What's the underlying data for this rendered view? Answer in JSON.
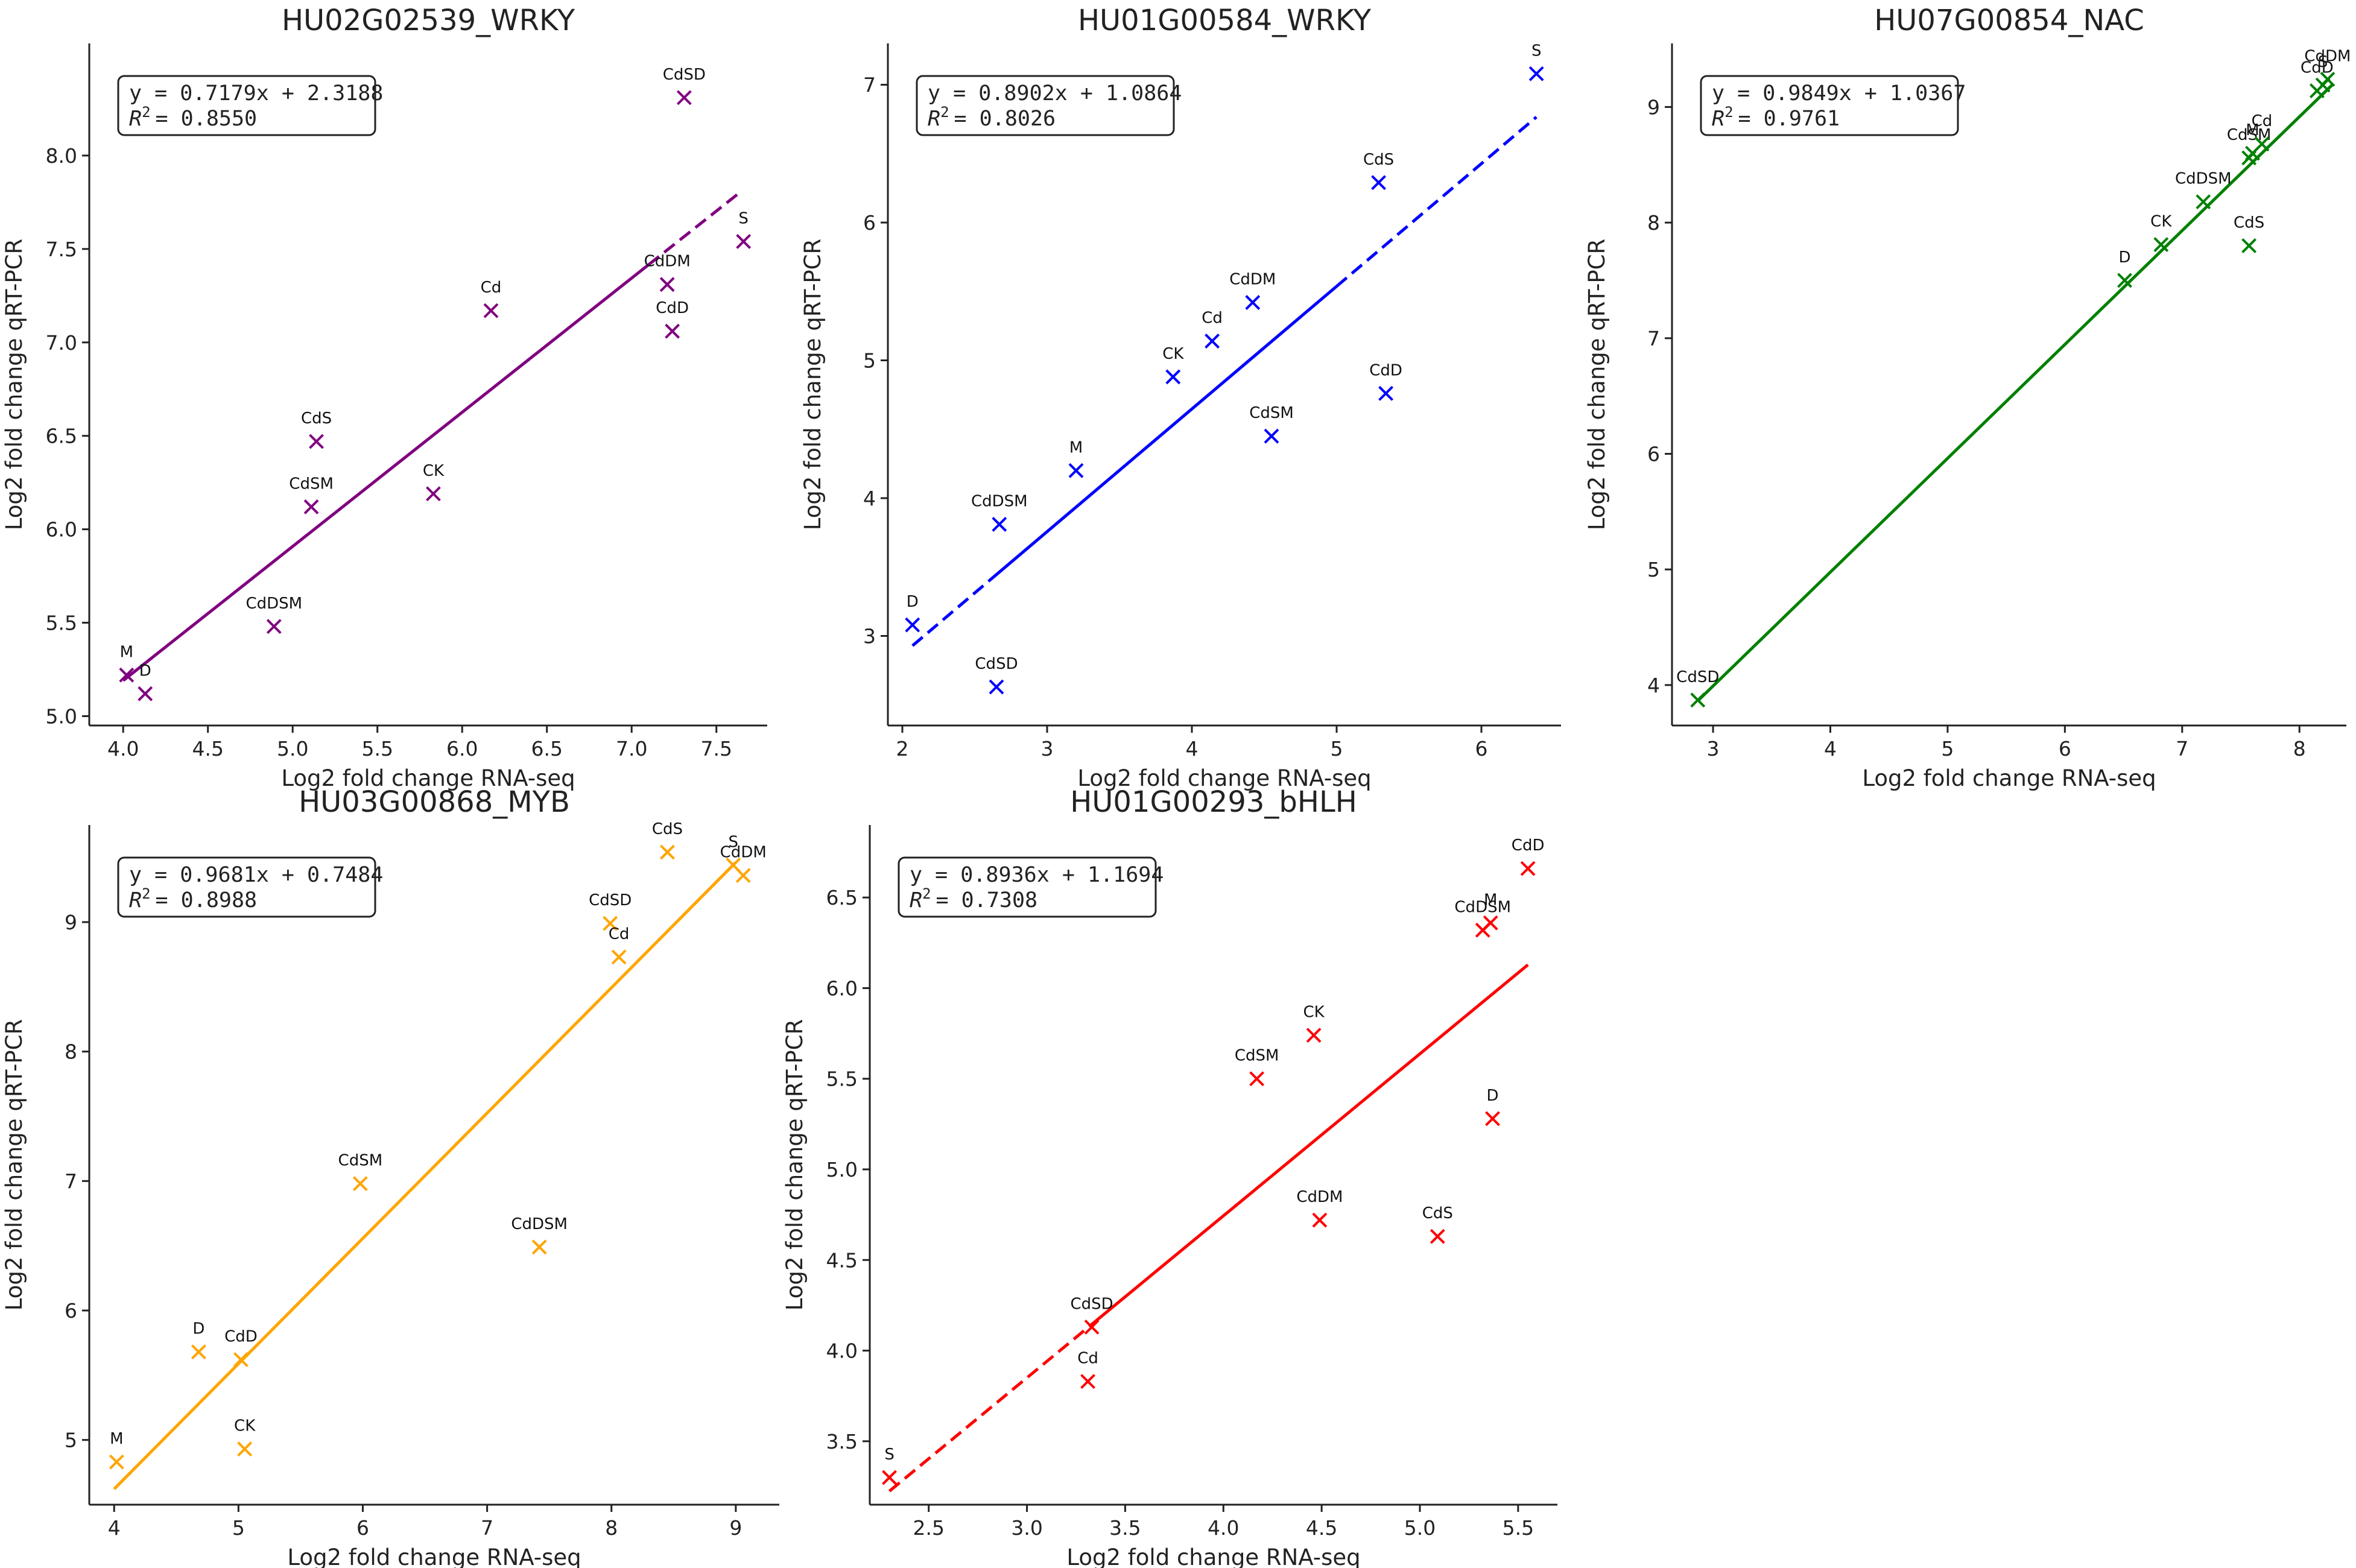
{
  "chart_data": [
    {
      "type": "scatter",
      "title": "HU02G02539_WRKY",
      "xlabel": "Log2 fold change RNA-seq",
      "ylabel": "Log2 fold change qRT-PCR",
      "color": "#800080",
      "xlim": [
        3.8,
        7.8
      ],
      "ylim": [
        4.95,
        8.6
      ],
      "xticks": [
        "4.0",
        "4.5",
        "5.0",
        "5.5",
        "6.0",
        "6.5",
        "7.0",
        "7.5"
      ],
      "yticks": [
        "5.0",
        "5.5",
        "6.0",
        "6.5",
        "7.0",
        "7.5",
        "8.0"
      ],
      "equation": "y = 0.7179x + 2.3188",
      "r2_label": "R",
      "r2_value": "= 0.8550",
      "fit": {
        "slope": 0.7179,
        "intercept": 2.3188,
        "x_solid": [
          4.0,
          7.1
        ],
        "x_dashed": [
          7.1,
          7.65
        ]
      },
      "points": [
        {
          "label": "M",
          "x": 4.02,
          "y": 5.22
        },
        {
          "label": "D",
          "x": 4.13,
          "y": 5.12
        },
        {
          "label": "CdDSM",
          "x": 4.89,
          "y": 5.48
        },
        {
          "label": "CdSM",
          "x": 5.11,
          "y": 6.12
        },
        {
          "label": "CdS",
          "x": 5.14,
          "y": 6.47
        },
        {
          "label": "CK",
          "x": 5.83,
          "y": 6.19
        },
        {
          "label": "Cd",
          "x": 6.17,
          "y": 7.17
        },
        {
          "label": "CdDM",
          "x": 7.21,
          "y": 7.31
        },
        {
          "label": "CdD",
          "x": 7.24,
          "y": 7.06
        },
        {
          "label": "CdSD",
          "x": 7.31,
          "y": 8.31
        },
        {
          "label": "S",
          "x": 7.66,
          "y": 7.54
        }
      ]
    },
    {
      "type": "scatter",
      "title": "HU01G00584_WRKY",
      "xlabel": "Log2 fold change RNA-seq",
      "ylabel": "Log2 fold change qRT-PCR",
      "color": "#0000FF",
      "xlim": [
        1.9,
        6.55
      ],
      "ylim": [
        2.35,
        7.3
      ],
      "xticks": [
        "2",
        "3",
        "4",
        "5",
        "6"
      ],
      "yticks": [
        "3",
        "4",
        "5",
        "6",
        "7"
      ],
      "equation": "y = 0.8902x + 1.0864",
      "r2_label": "R",
      "r2_value": "= 0.8026",
      "fit": {
        "slope": 0.8902,
        "intercept": 1.0864,
        "x_solid": [
          2.6,
          5.0
        ],
        "x_dashed_low": [
          2.07,
          2.6
        ],
        "x_dashed_high": [
          5.0,
          6.38
        ]
      },
      "points": [
        {
          "label": "D",
          "x": 2.07,
          "y": 3.08
        },
        {
          "label": "CdSD",
          "x": 2.65,
          "y": 2.63
        },
        {
          "label": "CdDSM",
          "x": 2.67,
          "y": 3.81
        },
        {
          "label": "M",
          "x": 3.2,
          "y": 4.2
        },
        {
          "label": "CK",
          "x": 3.87,
          "y": 4.88
        },
        {
          "label": "Cd",
          "x": 4.14,
          "y": 5.14
        },
        {
          "label": "CdDM",
          "x": 4.42,
          "y": 5.42
        },
        {
          "label": "CdSM",
          "x": 4.55,
          "y": 4.45
        },
        {
          "label": "CdS",
          "x": 5.29,
          "y": 6.29
        },
        {
          "label": "CdD",
          "x": 5.34,
          "y": 4.76
        },
        {
          "label": "S",
          "x": 6.38,
          "y": 7.08
        }
      ]
    },
    {
      "type": "scatter",
      "title": "HU07G00854_NAC",
      "xlabel": "Log2 fold change RNA-seq",
      "ylabel": "Log2 fold change qRT-PCR",
      "color": "#008000",
      "xlim": [
        2.65,
        8.4
      ],
      "ylim": [
        3.65,
        9.55
      ],
      "xticks": [
        "3",
        "4",
        "5",
        "6",
        "7",
        "8"
      ],
      "yticks": [
        "4",
        "5",
        "6",
        "7",
        "8",
        "9"
      ],
      "equation": "y = 0.9849x + 1.0367",
      "r2_label": "R",
      "r2_value": "= 0.9761",
      "fit": {
        "slope": 0.9849,
        "intercept": 1.0367,
        "x_solid": [
          2.87,
          8.28
        ]
      },
      "points": [
        {
          "label": "CdSD",
          "x": 2.87,
          "y": 3.87
        },
        {
          "label": "D",
          "x": 6.51,
          "y": 7.5
        },
        {
          "label": "CK",
          "x": 6.82,
          "y": 7.81
        },
        {
          "label": "CdDSM",
          "x": 7.18,
          "y": 8.18
        },
        {
          "label": "CdS",
          "x": 7.57,
          "y": 7.8
        },
        {
          "label": "CdSM",
          "x": 7.57,
          "y": 8.56
        },
        {
          "label": "M",
          "x": 7.6,
          "y": 8.6
        },
        {
          "label": "Cd",
          "x": 7.68,
          "y": 8.68
        },
        {
          "label": "CdD",
          "x": 8.15,
          "y": 9.14
        },
        {
          "label": "S",
          "x": 8.2,
          "y": 9.19
        },
        {
          "label": "CdDM",
          "x": 8.24,
          "y": 9.24
        }
      ]
    },
    {
      "type": "scatter",
      "title": "HU03G00868_MYB",
      "xlabel": "Log2 fold change RNA-seq",
      "ylabel": "Log2 fold change qRT-PCR",
      "color": "#FFA500",
      "xlim": [
        3.8,
        9.35
      ],
      "ylim": [
        4.5,
        9.75
      ],
      "xticks": [
        "4",
        "5",
        "6",
        "7",
        "8",
        "9"
      ],
      "yticks": [
        "5",
        "6",
        "7",
        "8",
        "9"
      ],
      "equation": "y = 0.9681x + 0.7484",
      "r2_label": "R",
      "r2_value": "= 0.8988",
      "fit": {
        "slope": 0.9681,
        "intercept": 0.7484,
        "x_solid": [
          4.0,
          9.0
        ]
      },
      "points": [
        {
          "label": "M",
          "x": 4.02,
          "y": 4.83
        },
        {
          "label": "D",
          "x": 4.68,
          "y": 5.68
        },
        {
          "label": "CdD",
          "x": 5.02,
          "y": 5.62
        },
        {
          "label": "CK",
          "x": 5.05,
          "y": 4.93
        },
        {
          "label": "CdSM",
          "x": 5.98,
          "y": 6.98
        },
        {
          "label": "CdDSM",
          "x": 7.42,
          "y": 6.49
        },
        {
          "label": "CdSD",
          "x": 7.99,
          "y": 8.99
        },
        {
          "label": "Cd",
          "x": 8.06,
          "y": 8.73
        },
        {
          "label": "CdS",
          "x": 8.45,
          "y": 9.54
        },
        {
          "label": "S",
          "x": 8.98,
          "y": 9.44
        },
        {
          "label": "CdDM",
          "x": 9.06,
          "y": 9.36
        }
      ]
    },
    {
      "type": "scatter",
      "title": "HU01G00293_bHLH",
      "xlabel": "Log2 fold change RNA-seq",
      "ylabel": "Log2 fold change qRT-PCR",
      "color": "#FF0000",
      "xlim": [
        2.2,
        5.7
      ],
      "ylim": [
        3.15,
        6.9
      ],
      "xticks": [
        "2.5",
        "3.0",
        "3.5",
        "4.0",
        "4.5",
        "5.0",
        "5.5"
      ],
      "yticks": [
        "3.5",
        "4.0",
        "4.5",
        "5.0",
        "5.5",
        "6.0",
        "6.5"
      ],
      "equation": "y = 0.8936x + 1.1694",
      "r2_label": "R",
      "r2_value": "= 0.7308",
      "fit": {
        "slope": 0.8936,
        "intercept": 1.1694,
        "x_solid": [
          3.35,
          5.55
        ],
        "x_dashed_low": [
          2.3,
          3.35
        ]
      },
      "points": [
        {
          "label": "S",
          "x": 2.3,
          "y": 3.3
        },
        {
          "label": "Cd",
          "x": 3.31,
          "y": 3.83
        },
        {
          "label": "CdSD",
          "x": 3.33,
          "y": 4.13
        },
        {
          "label": "CdSM",
          "x": 4.17,
          "y": 5.5
        },
        {
          "label": "CK",
          "x": 4.46,
          "y": 5.74
        },
        {
          "label": "CdDM",
          "x": 4.49,
          "y": 4.72
        },
        {
          "label": "CdS",
          "x": 5.09,
          "y": 4.63
        },
        {
          "label": "CdDSM",
          "x": 5.32,
          "y": 6.32
        },
        {
          "label": "M",
          "x": 5.36,
          "y": 6.36
        },
        {
          "label": "D",
          "x": 5.37,
          "y": 5.28
        },
        {
          "label": "CdD",
          "x": 5.55,
          "y": 6.66
        }
      ]
    }
  ]
}
